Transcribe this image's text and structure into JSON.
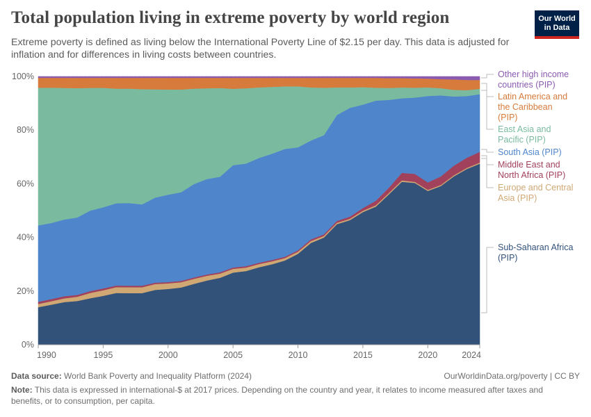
{
  "header": {
    "title": "Total population living in extreme poverty by world region",
    "subtitle": "Extreme poverty is defined as living below the International Poverty Line of $2.15 per day. This data is adjusted for inflation and for differences in living costs between countries.",
    "logo_line1": "Our World",
    "logo_line2": "in Data"
  },
  "footer": {
    "source_label": "Data source:",
    "source_text": "World Bank Poverty and Inequality Platform (2024)",
    "license": "OurWorldinData.org/poverty | CC BY",
    "note_label": "Note:",
    "note_text": "This data is expressed in international-$ at 2017 prices. Depending on the country and year, it relates to income measured after taxes and benefits, or to consumption, per capita."
  },
  "colors": {
    "sub_saharan_africa": "#32527a",
    "europe_central_asia": "#d0a873",
    "middle_east_north_africa": "#a2415c",
    "south_asia": "#4f86cb",
    "east_asia_pacific": "#7abb9f",
    "latin_america_caribbean": "#d77b3c",
    "other_high_income": "#8a5bb0"
  },
  "chart_data": {
    "type": "area",
    "stacked": true,
    "normalized": true,
    "x": [
      1990,
      1991,
      1992,
      1993,
      1994,
      1995,
      1996,
      1997,
      1998,
      1999,
      2000,
      2001,
      2002,
      2003,
      2004,
      2005,
      2006,
      2007,
      2008,
      2009,
      2010,
      2011,
      2012,
      2013,
      2014,
      2015,
      2016,
      2017,
      2018,
      2019,
      2020,
      2021,
      2022,
      2023,
      2024
    ],
    "xticks": [
      "1990",
      "1995",
      "2000",
      "2005",
      "2010",
      "2015",
      "2020",
      "2024"
    ],
    "xtick_values": [
      1990,
      1995,
      2000,
      2005,
      2010,
      2015,
      2020,
      2024
    ],
    "yticks": [
      "0%",
      "20%",
      "40%",
      "60%",
      "80%",
      "100%"
    ],
    "ytick_values": [
      0,
      20,
      40,
      60,
      80,
      100
    ],
    "ylim": [
      0,
      100
    ],
    "grid": "horizontal-dashed",
    "legend_position": "right",
    "series": [
      {
        "name": "Sub-Saharan Africa (PIP)",
        "color_key": "sub_saharan_africa",
        "values": [
          14,
          15,
          16,
          16.5,
          17.5,
          18.5,
          19.5,
          19.5,
          19.5,
          20.5,
          21,
          21.5,
          23,
          24.5,
          25.5,
          27,
          27.5,
          29,
          30,
          31.5,
          34,
          38,
          40,
          45,
          46.5,
          49.5,
          51.5,
          56.5,
          60.5,
          60.5,
          57.5,
          59.5,
          63,
          65.5,
          67.5
        ]
      },
      {
        "name": "Europe and Central Asia (PIP)",
        "color_key": "europe_central_asia",
        "values": [
          1.2,
          1.3,
          1.4,
          1.6,
          2,
          2.1,
          2.2,
          2.2,
          2.2,
          2.2,
          2.1,
          2,
          1.9,
          1.8,
          1.6,
          1.4,
          1.3,
          1.2,
          1.1,
          0.9,
          0.8,
          0.7,
          0.6,
          0.5,
          0.5,
          0.5,
          0.5,
          0.5,
          0.5,
          0.4,
          0.4,
          0.4,
          0.4,
          0.4,
          0.4
        ]
      },
      {
        "name": "Middle East and North Africa (PIP)",
        "color_key": "middle_east_north_africa",
        "values": [
          0.8,
          0.8,
          0.8,
          0.7,
          0.7,
          0.7,
          0.6,
          0.6,
          0.6,
          0.5,
          0.5,
          0.5,
          0.5,
          0.5,
          0.5,
          0.5,
          0.5,
          0.5,
          0.5,
          0.5,
          0.5,
          0.6,
          0.6,
          0.7,
          0.8,
          1,
          1.7,
          2,
          2.8,
          3,
          2.8,
          3.2,
          3.6,
          3.8,
          4
        ]
      },
      {
        "name": "South Asia (PIP)",
        "color_key": "south_asia",
        "values": [
          28.5,
          28.5,
          28.8,
          29.2,
          30.3,
          30.7,
          31,
          31.2,
          30.7,
          31.8,
          32.9,
          33.3,
          35.3,
          36.4,
          36.4,
          38.3,
          38.3,
          39.2,
          39.6,
          40.3,
          38.5,
          36.9,
          37,
          39.5,
          40.6,
          38.6,
          37.3,
          33,
          27.7,
          28.5,
          32.3,
          30.4,
          25.9,
          23,
          21.5
        ]
      },
      {
        "name": "East Asia and Pacific (PIP)",
        "color_key": "east_asia_pacific",
        "values": [
          51.3,
          50.7,
          49.4,
          48.8,
          46.2,
          45.2,
          43.2,
          43.2,
          43.5,
          40.5,
          39.6,
          38.6,
          36,
          34.6,
          33.8,
          28.6,
          28.1,
          26.4,
          24.9,
          23.4,
          22.8,
          19.8,
          17.7,
          10.3,
          7.6,
          6.5,
          4.8,
          4.5,
          4,
          3.7,
          3.2,
          2.7,
          2.5,
          2.2,
          2
        ]
      },
      {
        "name": "Latin America and the Caribbean (PIP)",
        "color_key": "latin_america_caribbean",
        "values": [
          3.7,
          3.7,
          3.8,
          3.9,
          3.8,
          3.8,
          4.1,
          4.1,
          4.3,
          4.3,
          4.4,
          4.4,
          4.1,
          4.0,
          3.9,
          4.1,
          3.9,
          3.6,
          3.4,
          3.2,
          3.2,
          3.6,
          3.7,
          3.6,
          3.6,
          3.5,
          3.7,
          3.7,
          3.5,
          3.5,
          3.3,
          3.4,
          3.9,
          3.8,
          3.3
        ]
      },
      {
        "name": "Other high income countries (PIP)",
        "color_key": "other_high_income",
        "values": [
          0.5,
          0.5,
          0.5,
          0.5,
          0.5,
          0.5,
          0.5,
          0.5,
          0.5,
          0.5,
          0.5,
          0.5,
          0.5,
          0.5,
          0.5,
          0.5,
          0.5,
          0.5,
          0.5,
          0.5,
          0.5,
          0.5,
          0.5,
          0.5,
          0.5,
          0.5,
          0.5,
          0.6,
          0.6,
          0.7,
          0.8,
          1.0,
          1.1,
          1.3,
          1.3
        ]
      }
    ],
    "legend": [
      {
        "lines": [
          "Other high income",
          "countries (PIP)"
        ],
        "color_key": "other_high_income"
      },
      {
        "lines": [
          "Latin America and",
          "the Caribbean",
          "(PIP)"
        ],
        "color_key": "latin_america_caribbean"
      },
      {
        "lines": [
          "East Asia and",
          "Pacific (PIP)"
        ],
        "color_key": "east_asia_pacific"
      },
      {
        "lines": [
          "South Asia (PIP)"
        ],
        "color_key": "south_asia"
      },
      {
        "lines": [
          "Middle East and",
          "North Africa (PIP)"
        ],
        "color_key": "middle_east_north_africa"
      },
      {
        "lines": [
          "Europe and Central",
          "Asia (PIP)"
        ],
        "color_key": "europe_central_asia"
      },
      {
        "lines": [
          "Sub-Saharan Africa",
          "(PIP)"
        ],
        "color_key": "sub_saharan_africa"
      }
    ]
  }
}
